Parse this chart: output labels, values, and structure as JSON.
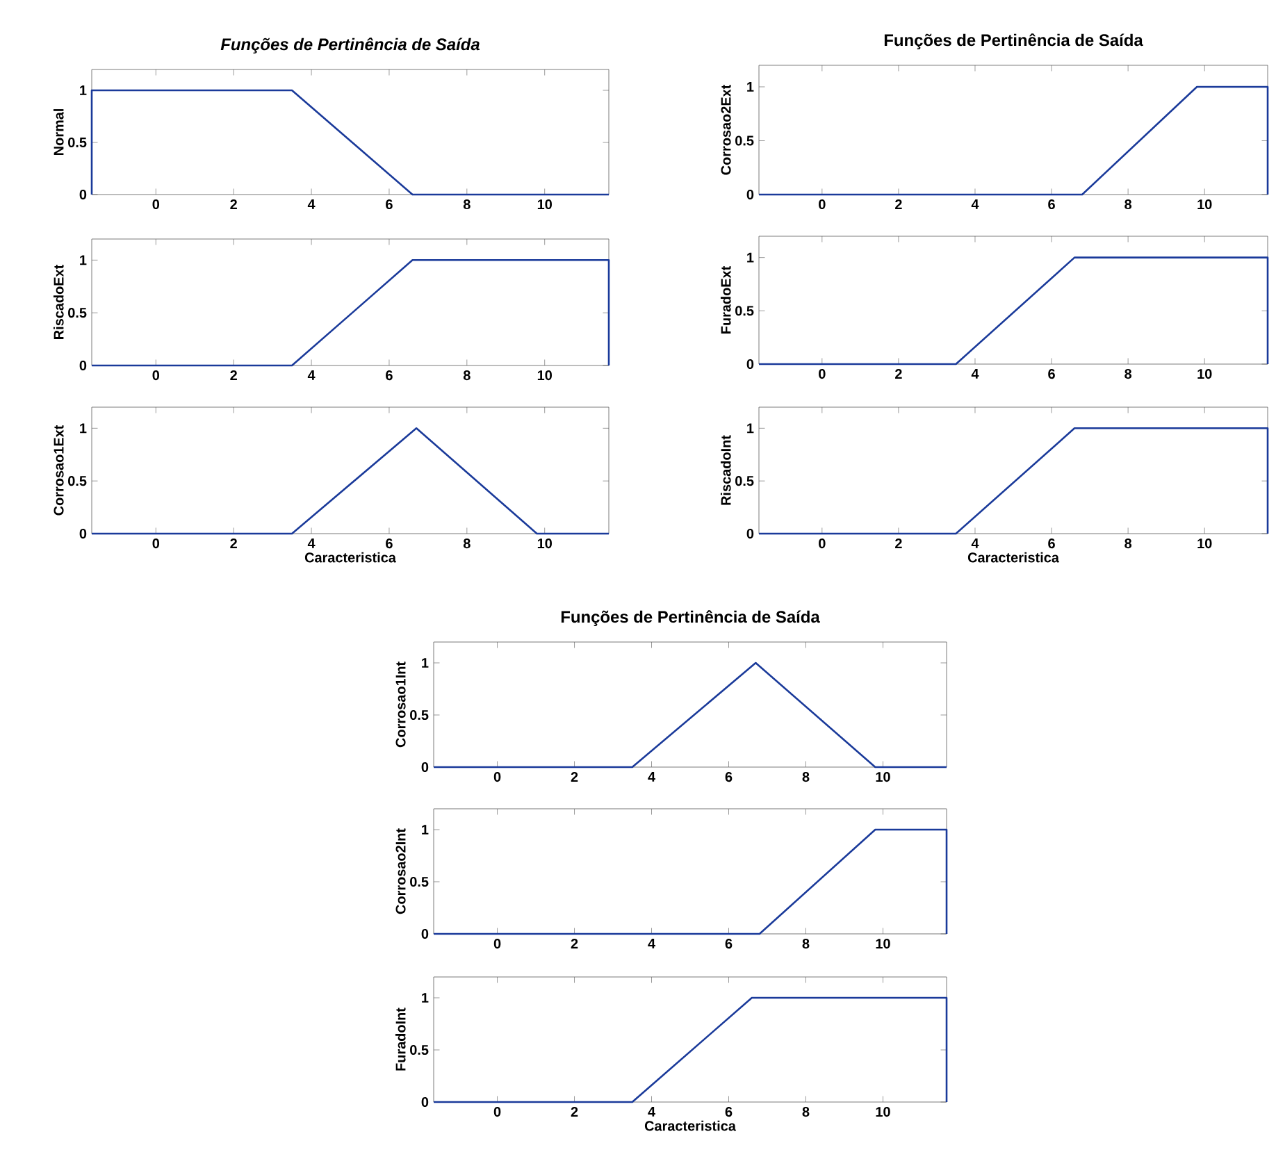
{
  "chart_data": [
    {
      "type": "line",
      "title": "Funções de Pertinência de Saída",
      "ylabel": "Normal",
      "xlim": [
        -1.65,
        11.65
      ],
      "ylim": [
        0,
        1.2
      ],
      "xticks": [
        0,
        2,
        4,
        6,
        8,
        10
      ],
      "yticks": [
        0,
        0.5,
        1
      ],
      "grid": false,
      "marker": "none",
      "line_style": "solid",
      "series": [
        {
          "color": "#1a3a9a",
          "x": [
            -1.65,
            -1.65,
            3.5,
            6.6,
            11.65
          ],
          "values": [
            0,
            1,
            1,
            0,
            0
          ]
        }
      ]
    },
    {
      "type": "line",
      "ylabel": "RiscadoExt",
      "xlim": [
        -1.65,
        11.65
      ],
      "ylim": [
        0,
        1.2
      ],
      "xticks": [
        0,
        2,
        4,
        6,
        8,
        10
      ],
      "yticks": [
        0,
        0.5,
        1
      ],
      "grid": false,
      "marker": "none",
      "line_style": "solid",
      "series": [
        {
          "color": "#1a3a9a",
          "x": [
            -1.65,
            3.5,
            6.6,
            11.65,
            11.65
          ],
          "values": [
            0,
            0,
            1,
            1,
            0
          ]
        }
      ]
    },
    {
      "type": "line",
      "xlabel": "Caracteristica",
      "ylabel": "Corrosao1Ext",
      "xlim": [
        -1.65,
        11.65
      ],
      "ylim": [
        0,
        1.2
      ],
      "xticks": [
        0,
        2,
        4,
        6,
        8,
        10
      ],
      "yticks": [
        0,
        0.5,
        1
      ],
      "grid": false,
      "marker": "none",
      "line_style": "solid",
      "series": [
        {
          "color": "#1a3a9a",
          "x": [
            -1.65,
            3.5,
            6.7,
            9.8,
            11.65
          ],
          "values": [
            0,
            0,
            1,
            0,
            0
          ]
        }
      ]
    },
    {
      "type": "line",
      "title": "Funções de Pertinência de Saída",
      "ylabel": "Corrosao2Ext",
      "xlim": [
        -1.65,
        11.65
      ],
      "ylim": [
        0,
        1.2
      ],
      "xticks": [
        0,
        2,
        4,
        6,
        8,
        10
      ],
      "yticks": [
        0,
        0.5,
        1
      ],
      "grid": false,
      "marker": "none",
      "line_style": "solid",
      "series": [
        {
          "color": "#1a3a9a",
          "x": [
            -1.65,
            6.8,
            9.8,
            11.65,
            11.65
          ],
          "values": [
            0,
            0,
            1,
            1,
            0
          ]
        }
      ]
    },
    {
      "type": "line",
      "ylabel": "FuradoExt",
      "xlim": [
        -1.65,
        11.65
      ],
      "ylim": [
        0,
        1.2
      ],
      "xticks": [
        0,
        2,
        4,
        6,
        8,
        10
      ],
      "yticks": [
        0,
        0.5,
        1
      ],
      "grid": false,
      "marker": "none",
      "line_style": "solid",
      "series": [
        {
          "color": "#1a3a9a",
          "x": [
            -1.65,
            3.5,
            6.6,
            11.65,
            11.65
          ],
          "values": [
            0,
            0,
            1,
            1,
            0
          ]
        }
      ]
    },
    {
      "type": "line",
      "xlabel": "Caracteristica",
      "ylabel": "RiscadoInt",
      "xlim": [
        -1.65,
        11.65
      ],
      "ylim": [
        0,
        1.2
      ],
      "xticks": [
        0,
        2,
        4,
        6,
        8,
        10
      ],
      "yticks": [
        0,
        0.5,
        1
      ],
      "grid": false,
      "marker": "none",
      "line_style": "solid",
      "series": [
        {
          "color": "#1a3a9a",
          "x": [
            -1.65,
            3.5,
            6.6,
            11.65,
            11.65
          ],
          "values": [
            0,
            0,
            1,
            1,
            0
          ]
        }
      ]
    },
    {
      "type": "line",
      "title": "Funções de Pertinência de Saída",
      "ylabel": "Corrosao1Int",
      "xlim": [
        -1.65,
        11.65
      ],
      "ylim": [
        0,
        1.2
      ],
      "xticks": [
        0,
        2,
        4,
        6,
        8,
        10
      ],
      "yticks": [
        0,
        0.5,
        1
      ],
      "grid": false,
      "marker": "none",
      "line_style": "solid",
      "series": [
        {
          "color": "#1a3a9a",
          "x": [
            -1.65,
            3.5,
            6.7,
            9.8,
            11.65
          ],
          "values": [
            0,
            0,
            1,
            0,
            0
          ]
        }
      ]
    },
    {
      "type": "line",
      "ylabel": "Corrosao2Int",
      "xlim": [
        -1.65,
        11.65
      ],
      "ylim": [
        0,
        1.2
      ],
      "xticks": [
        0,
        2,
        4,
        6,
        8,
        10
      ],
      "yticks": [
        0,
        0.5,
        1
      ],
      "grid": false,
      "marker": "none",
      "line_style": "solid",
      "series": [
        {
          "color": "#1a3a9a",
          "x": [
            -1.65,
            6.8,
            9.8,
            11.65,
            11.65
          ],
          "values": [
            0,
            0,
            1,
            1,
            0
          ]
        }
      ]
    },
    {
      "type": "line",
      "xlabel": "Caracteristica",
      "ylabel": "FuradoInt",
      "xlim": [
        -1.65,
        11.65
      ],
      "ylim": [
        0,
        1.2
      ],
      "xticks": [
        0,
        2,
        4,
        6,
        8,
        10
      ],
      "yticks": [
        0,
        0.5,
        1
      ],
      "grid": false,
      "marker": "none",
      "line_style": "solid",
      "series": [
        {
          "color": "#1a3a9a",
          "x": [
            -1.65,
            3.5,
            6.6,
            11.65,
            11.65
          ],
          "values": [
            0,
            0,
            1,
            1,
            0
          ]
        }
      ]
    }
  ]
}
